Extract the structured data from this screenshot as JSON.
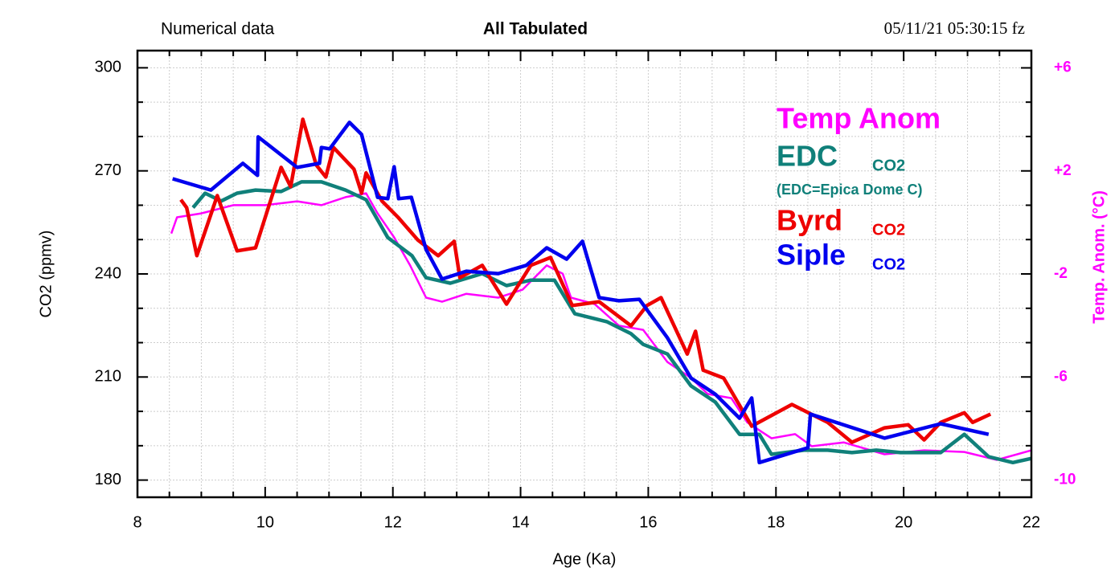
{
  "chart_data": {
    "type": "line",
    "header": {
      "left": "Numerical data",
      "title": "All Tabulated",
      "right": "05/11/21  05:30:15 fz"
    },
    "x_label": "Age (Ka)",
    "y_label": "CO2 (ppmv)",
    "y2_label": "Temp. Anom. (°C)",
    "xlim": [
      8,
      22
    ],
    "xticks": [
      8,
      10,
      12,
      14,
      16,
      18,
      20,
      22
    ],
    "ylim": [
      175,
      305
    ],
    "yticks": [
      180,
      210,
      240,
      270,
      300
    ],
    "y2lim": [
      -10.67,
      6.67
    ],
    "y2ticks": [
      {
        "value": 6,
        "label": "+6"
      },
      {
        "value": 2,
        "label": "+2"
      },
      -2,
      -6,
      -10
    ],
    "grid": true,
    "legend": "upper right",
    "annotation": "(EDC=Epica Dome C)",
    "series": [
      {
        "name": "Temp Anom",
        "color": "#ff00ff",
        "axis": "y2",
        "x": [
          8.53,
          8.62,
          9.0,
          9.5,
          10.0,
          10.5,
          10.88,
          11.26,
          11.58,
          11.76,
          12.02,
          12.27,
          12.52,
          12.77,
          13.15,
          13.65,
          14.03,
          14.41,
          14.66,
          14.79,
          15.16,
          15.54,
          15.92,
          16.3,
          16.67,
          16.93,
          17.3,
          17.55,
          17.93,
          18.3,
          18.56,
          19.06,
          19.7,
          20.32,
          20.95,
          21.46,
          22.0
        ],
        "values": [
          -0.43,
          0.2,
          0.35,
          0.67,
          0.67,
          0.82,
          0.67,
          0.98,
          1.13,
          0.35,
          -0.58,
          -1.67,
          -2.92,
          -3.08,
          -2.77,
          -2.92,
          -2.61,
          -1.67,
          -1.99,
          -2.92,
          -3.17,
          -4.01,
          -4.17,
          -5.42,
          -6.04,
          -6.66,
          -6.82,
          -7.76,
          -8.38,
          -8.22,
          -8.69,
          -8.54,
          -9.0,
          -8.85,
          -8.91,
          -9.22,
          -8.85
        ]
      },
      {
        "name": "EDC",
        "color": "#10807a",
        "legend_suffix": "CO2",
        "x": [
          8.87,
          9.06,
          9.31,
          9.56,
          9.85,
          10.25,
          10.57,
          10.88,
          11.26,
          11.58,
          11.92,
          12.3,
          12.52,
          12.9,
          13.4,
          13.78,
          14.16,
          14.53,
          14.85,
          15.35,
          15.73,
          15.92,
          16.3,
          16.67,
          17.05,
          17.43,
          17.74,
          17.93,
          18.44,
          18.81,
          19.19,
          19.57,
          19.95,
          20.58,
          20.95,
          21.33,
          21.71,
          22.0
        ],
        "values": [
          259.3,
          263.5,
          261.2,
          263.5,
          264.4,
          264.0,
          266.8,
          266.8,
          264.4,
          261.6,
          250.6,
          245.3,
          238.9,
          237.3,
          240.1,
          236.6,
          238.2,
          238.2,
          228.4,
          226.1,
          222.6,
          219.5,
          216.7,
          207.4,
          202.7,
          193.3,
          193.3,
          187.5,
          188.7,
          188.7,
          188.0,
          188.7,
          188.0,
          188.0,
          193.3,
          186.8,
          185.1,
          186.3
        ]
      },
      {
        "name": "Byrd",
        "color": "#ee0000",
        "legend_suffix": "CO2",
        "x": [
          8.68,
          8.77,
          8.93,
          9.25,
          9.56,
          9.85,
          10.25,
          10.4,
          10.59,
          10.8,
          10.95,
          11.07,
          11.39,
          11.51,
          11.58,
          11.83,
          12.08,
          12.39,
          12.71,
          12.96,
          13.05,
          13.4,
          13.78,
          14.16,
          14.47,
          14.81,
          15.23,
          15.73,
          15.98,
          16.2,
          16.61,
          16.74,
          16.86,
          17.18,
          17.62,
          18.25,
          18.81,
          19.19,
          19.7,
          20.07,
          20.32,
          20.58,
          20.95,
          21.08,
          21.36
        ],
        "values": [
          261.6,
          259.3,
          245.3,
          262.8,
          246.7,
          247.6,
          271.0,
          265.4,
          285.0,
          271.7,
          268.2,
          276.8,
          270.5,
          263.5,
          269.4,
          261.2,
          256.5,
          249.9,
          245.3,
          249.5,
          238.9,
          242.5,
          231.2,
          242.5,
          244.8,
          230.8,
          231.9,
          224.9,
          230.8,
          233.1,
          216.7,
          223.3,
          212.0,
          209.7,
          195.7,
          202.0,
          196.8,
          191.0,
          195.2,
          196.1,
          191.7,
          196.8,
          199.6,
          196.8,
          199.2
        ]
      },
      {
        "name": "Siple",
        "color": "#0000ee",
        "legend_suffix": "CO2",
        "x": [
          8.55,
          9.15,
          9.65,
          9.88,
          9.89,
          10.5,
          10.85,
          10.88,
          11.01,
          11.32,
          11.51,
          11.76,
          11.92,
          12.02,
          12.09,
          12.29,
          12.52,
          12.77,
          13.15,
          13.65,
          14.09,
          14.41,
          14.72,
          14.97,
          15.23,
          15.54,
          15.86,
          16.3,
          16.67,
          17.05,
          17.43,
          17.62,
          17.74,
          18.5,
          18.54,
          19.7,
          20.58,
          21.33
        ],
        "values": [
          267.7,
          264.4,
          272.2,
          268.7,
          279.9,
          271.0,
          272.2,
          276.8,
          276.4,
          284.1,
          280.6,
          262.3,
          261.9,
          271.2,
          261.9,
          262.3,
          247.1,
          238.5,
          240.8,
          240.1,
          242.5,
          247.6,
          244.3,
          249.5,
          233.1,
          232.2,
          232.6,
          221.4,
          209.7,
          205.0,
          198.0,
          203.9,
          185.1,
          189.4,
          199.2,
          192.2,
          196.4,
          193.3
        ]
      }
    ]
  }
}
